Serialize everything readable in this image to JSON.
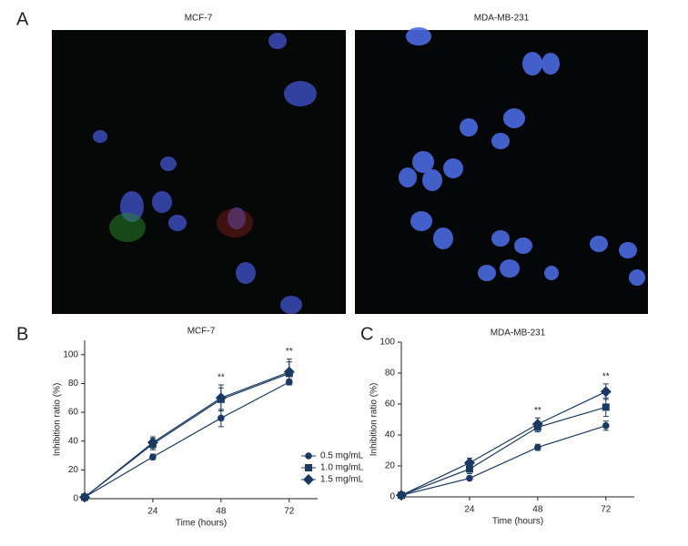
{
  "panels": {
    "labels": [
      "A",
      "B",
      "C"
    ],
    "image_titles": [
      "MCF-7",
      "MDA-MB-231"
    ]
  },
  "chart_data": [
    {
      "type": "line",
      "title": "MCF-7",
      "x_label": "Time (hours)",
      "y_label": "Inhibition ratio (%)",
      "x": [
        0,
        24,
        48,
        72
      ],
      "xlim": [
        0,
        82
      ],
      "xticks": [
        24,
        48,
        72
      ],
      "ylim": [
        0,
        110
      ],
      "yticks": [
        0,
        20,
        40,
        60,
        80,
        100
      ],
      "legend": "lower right",
      "series": [
        {
          "name": "0.5 mg/mL",
          "color": "#1b3a63",
          "marker": "circle",
          "values": [
            1,
            29,
            56,
            81
          ],
          "errors": [
            0,
            2,
            6,
            2
          ]
        },
        {
          "name": "1.0 mg/mL",
          "color": "#1b3a63",
          "marker": "square",
          "values": [
            1,
            38,
            69,
            87
          ],
          "errors": [
            0,
            4,
            8,
            8
          ]
        },
        {
          "name": "1.5 mg/mL",
          "color": "#1b3a63",
          "marker": "diamond",
          "values": [
            1,
            39,
            70,
            88
          ],
          "errors": [
            0,
            4,
            9,
            9
          ]
        }
      ],
      "annotations": [
        {
          "x": 48,
          "text": "**"
        },
        {
          "x": 72,
          "text": "**"
        }
      ]
    },
    {
      "type": "line",
      "title": "MDA-MB-231",
      "x_label": "Time (hours)",
      "y_label": "Inhibition ratio (%)",
      "x": [
        0,
        24,
        48,
        72
      ],
      "xlim": [
        0,
        82
      ],
      "xticks": [
        24,
        48,
        72
      ],
      "ylim": [
        0,
        100
      ],
      "yticks": [
        0,
        20,
        40,
        60,
        80,
        100
      ],
      "series": [
        {
          "name": "0.5 mg/mL",
          "color": "#1b3a63",
          "marker": "circle",
          "values": [
            1,
            12,
            32,
            46
          ],
          "errors": [
            0,
            1,
            2,
            3
          ]
        },
        {
          "name": "1.0 mg/mL",
          "color": "#1b3a63",
          "marker": "square",
          "values": [
            1,
            18,
            45,
            58
          ],
          "errors": [
            0,
            3,
            3,
            6
          ]
        },
        {
          "name": "1.5 mg/mL",
          "color": "#1b3a63",
          "marker": "diamond",
          "values": [
            1,
            22,
            47,
            68
          ],
          "errors": [
            0,
            3,
            4,
            5
          ]
        }
      ],
      "annotations": [
        {
          "x": 48,
          "text": "**"
        },
        {
          "x": 72,
          "text": "**"
        }
      ]
    }
  ]
}
